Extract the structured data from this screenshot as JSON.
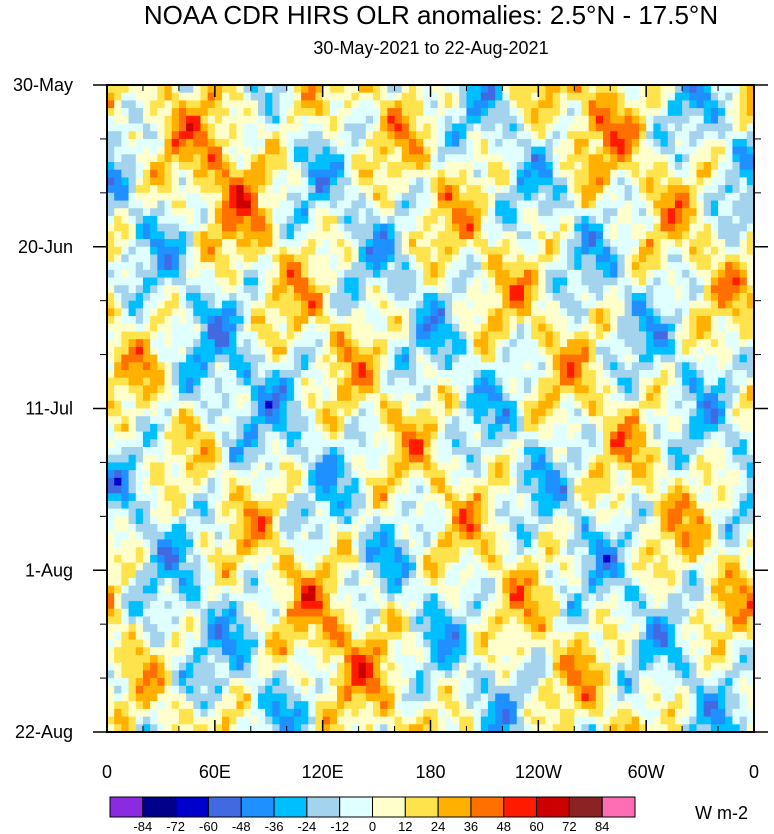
{
  "chart_data": {
    "type": "heatmap",
    "title": "NOAA CDR HIRS OLR anomalies: 2.5°N - 17.5°N",
    "subtitle": "30-May-2021 to 22-Aug-2021",
    "x_ticks": [
      "0",
      "60E",
      "120E",
      "180",
      "120W",
      "60W",
      "0"
    ],
    "x_tick_degrees": [
      0,
      60,
      120,
      180,
      240,
      300,
      360
    ],
    "xlim": [
      0,
      360
    ],
    "y_ticks": [
      "30-May",
      "20-Jun",
      "11-Jul",
      "1-Aug",
      "22-Aug"
    ],
    "y_tick_days": [
      0,
      21,
      42,
      63,
      84
    ],
    "ylim": [
      0,
      84
    ],
    "colorbar": {
      "levels": [
        -84,
        -72,
        -60,
        -48,
        -36,
        -24,
        -12,
        0,
        12,
        24,
        36,
        48,
        60,
        72,
        84
      ],
      "colors": [
        "#8a2be2",
        "#00008b",
        "#0000cd",
        "#4169e1",
        "#1e90ff",
        "#00bfff",
        "#a4d3ee",
        "#e0ffff",
        "#ffffcc",
        "#ffe34d",
        "#ffb000",
        "#ff7000",
        "#ff1a00",
        "#cc0000",
        "#8b2323",
        "#ff6eb4"
      ],
      "units": "W m-2"
    }
  }
}
